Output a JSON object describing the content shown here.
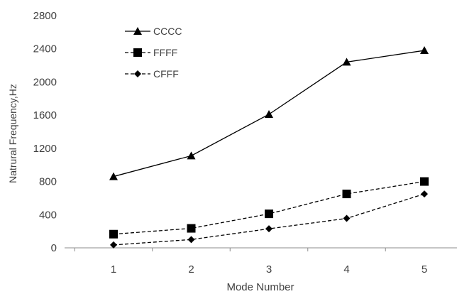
{
  "chart_data": {
    "type": "line",
    "title": "",
    "xlabel": "Mode Number",
    "ylabel": "Natrural Frequency,Hz",
    "x": [
      1,
      2,
      3,
      4,
      5
    ],
    "xticks": [
      "1",
      "2",
      "3",
      "4",
      "5"
    ],
    "ylim": [
      0,
      2800
    ],
    "yticks": [
      "0",
      "400",
      "800",
      "1200",
      "1600",
      "2000",
      "2400",
      "2800"
    ],
    "grid": false,
    "legend_position": "top-left",
    "series": [
      {
        "name": "CCCC",
        "values": [
          860,
          1110,
          1610,
          2240,
          2380
        ],
        "line_style": "solid",
        "marker": "triangle",
        "color": "#000000"
      },
      {
        "name": "FFFF",
        "values": [
          165,
          235,
          410,
          650,
          800
        ],
        "line_style": "dashed",
        "marker": "square",
        "color": "#000000"
      },
      {
        "name": "CFFF",
        "values": [
          35,
          100,
          230,
          355,
          650
        ],
        "line_style": "dashed",
        "marker": "diamond",
        "color": "#000000"
      }
    ]
  }
}
